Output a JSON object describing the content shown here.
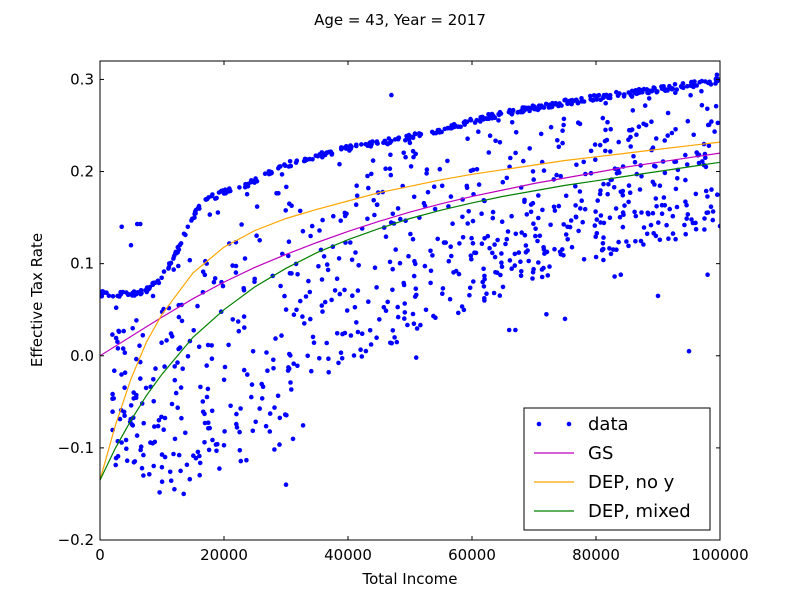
{
  "chart_data": {
    "type": "scatter",
    "title": "Age = 43, Year = 2017",
    "xlabel": "Total Income",
    "ylabel": "Effective Tax Rate",
    "xlim": [
      0,
      100000
    ],
    "ylim": [
      -0.2,
      0.32
    ],
    "x_ticks": [
      0,
      20000,
      40000,
      60000,
      80000,
      100000
    ],
    "x_tick_labels": [
      "0",
      "20000",
      "40000",
      "60000",
      "80000",
      "100000"
    ],
    "y_ticks": [
      -0.2,
      -0.1,
      0.0,
      0.1,
      0.2,
      0.3
    ],
    "y_tick_labels": [
      "−0.2",
      "−0.1",
      "0.0",
      "0.1",
      "0.2",
      "0.3"
    ],
    "grid": false,
    "legend_position": "lower-right",
    "colors": {
      "data": "#0000ff",
      "gs": "#bf00bf",
      "dep_no_y": "#ffa500",
      "dep_mixed": "#008000"
    },
    "series": [
      {
        "name": "data",
        "kind": "scatter",
        "color": "#0000ff",
        "upper_envelope": {
          "x": [
            0,
            6000,
            8000,
            10000,
            12000,
            14000,
            16000,
            18000,
            20000,
            22000,
            24000,
            26000,
            30000,
            35000,
            40000,
            45000,
            50000,
            55000,
            60000,
            65000,
            70000,
            75000,
            80000,
            85000,
            90000,
            95000,
            100000
          ],
          "y": [
            0.07,
            0.07,
            0.075,
            0.09,
            0.11,
            0.14,
            0.165,
            0.175,
            0.18,
            0.185,
            0.19,
            0.197,
            0.21,
            0.22,
            0.228,
            0.234,
            0.24,
            0.248,
            0.258,
            0.266,
            0.272,
            0.278,
            0.283,
            0.288,
            0.292,
            0.297,
            0.302
          ]
        },
        "lower_envelope": {
          "x": [
            2000,
            5000,
            10000,
            15000,
            20000,
            25000,
            30000,
            35000,
            40000,
            50000,
            60000,
            70000,
            80000,
            90000,
            100000
          ],
          "y": [
            -0.12,
            -0.14,
            -0.15,
            -0.14,
            -0.13,
            -0.12,
            -0.1,
            -0.06,
            -0.01,
            0.02,
            0.05,
            0.08,
            0.1,
            0.12,
            0.14
          ]
        },
        "outliers": {
          "x": [
            2000,
            3000,
            3500,
            5000,
            6000,
            6500,
            7000,
            8500,
            9500,
            10500,
            12000,
            13000,
            13500,
            30000,
            47000,
            51000,
            62000,
            66000,
            67000,
            72000,
            75000,
            83000,
            84000,
            90000,
            95000,
            98000,
            99500
          ],
          "y": [
            0.023,
            0.027,
            0.14,
            0.12,
            0.143,
            0.143,
            -0.13,
            -0.095,
            -0.07,
            -0.11,
            -0.145,
            -0.125,
            -0.15,
            -0.14,
            0.283,
            -0.002,
            0.06,
            0.028,
            0.028,
            0.045,
            0.04,
            0.086,
            0.088,
            0.065,
            0.005,
            0.088,
            0.305
          ]
        }
      },
      {
        "name": "GS",
        "kind": "line",
        "color": "#bf00bf",
        "x": [
          0,
          5000,
          10000,
          15000,
          20000,
          25000,
          30000,
          35000,
          40000,
          45000,
          50000,
          55000,
          60000,
          65000,
          70000,
          75000,
          80000,
          85000,
          90000,
          95000,
          100000
        ],
        "y": [
          0.0,
          0.021,
          0.042,
          0.062,
          0.08,
          0.096,
          0.11,
          0.123,
          0.135,
          0.146,
          0.156,
          0.165,
          0.173,
          0.18,
          0.187,
          0.193,
          0.199,
          0.205,
          0.21,
          0.215,
          0.22
        ]
      },
      {
        "name": "DEP, no y",
        "kind": "line",
        "color": "#ffa500",
        "x": [
          0,
          2500,
          5000,
          7500,
          10000,
          15000,
          20000,
          25000,
          30000,
          35000,
          40000,
          45000,
          50000,
          55000,
          60000,
          65000,
          70000,
          75000,
          80000,
          85000,
          90000,
          95000,
          100000
        ],
        "y": [
          -0.135,
          -0.075,
          -0.025,
          0.015,
          0.045,
          0.09,
          0.118,
          0.136,
          0.149,
          0.159,
          0.168,
          0.177,
          0.184,
          0.191,
          0.197,
          0.202,
          0.207,
          0.212,
          0.216,
          0.22,
          0.224,
          0.228,
          0.232
        ]
      },
      {
        "name": "DEP, mixed",
        "kind": "line",
        "color": "#008000",
        "x": [
          0,
          2500,
          5000,
          7500,
          10000,
          15000,
          20000,
          25000,
          30000,
          35000,
          40000,
          45000,
          50000,
          55000,
          60000,
          65000,
          70000,
          75000,
          80000,
          85000,
          90000,
          95000,
          100000
        ],
        "y": [
          -0.135,
          -0.1,
          -0.07,
          -0.043,
          -0.02,
          0.02,
          0.05,
          0.075,
          0.095,
          0.112,
          0.126,
          0.138,
          0.149,
          0.158,
          0.166,
          0.173,
          0.179,
          0.185,
          0.19,
          0.195,
          0.2,
          0.205,
          0.21
        ]
      }
    ]
  }
}
